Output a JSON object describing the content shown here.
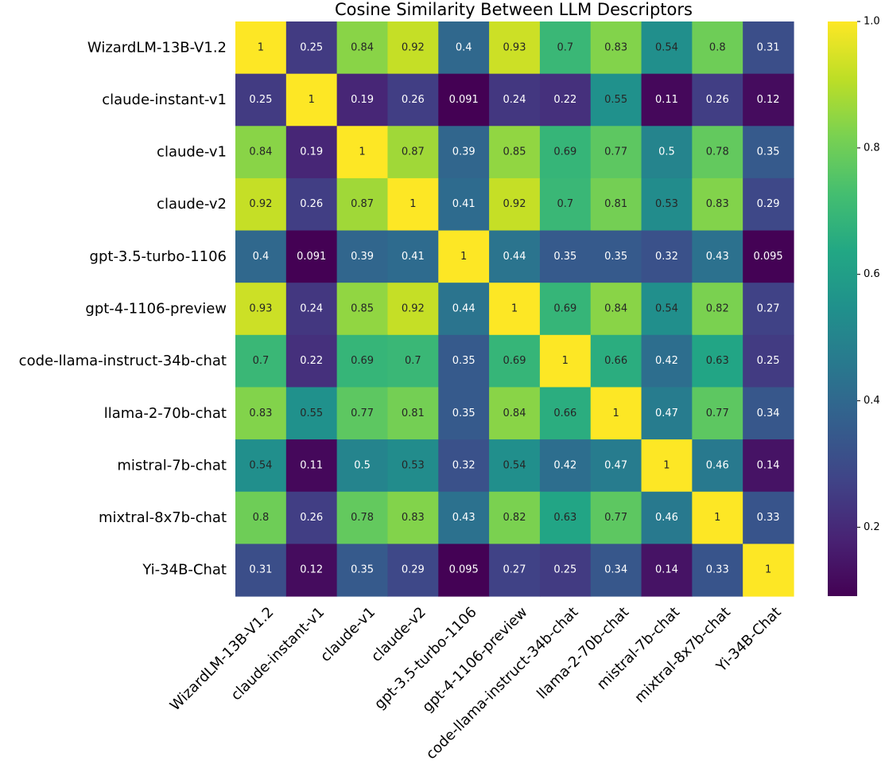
{
  "chart_data": {
    "type": "heatmap",
    "title": "Cosine Similarity Between LLM Descriptors",
    "xlabel": "",
    "ylabel": "",
    "colormap": "viridis",
    "vmin": 0.091,
    "vmax": 1.0,
    "annotate": true,
    "labels": [
      "WizardLM-13B-V1.2",
      "claude-instant-v1",
      "claude-v1",
      "claude-v2",
      "gpt-3.5-turbo-1106",
      "gpt-4-1106-preview",
      "code-llama-instruct-34b-chat",
      "llama-2-70b-chat",
      "mistral-7b-chat",
      "mixtral-8x7b-chat",
      "Yi-34B-Chat"
    ],
    "matrix": [
      [
        1,
        0.25,
        0.84,
        0.92,
        0.4,
        0.93,
        0.7,
        0.83,
        0.54,
        0.8,
        0.31
      ],
      [
        0.25,
        1,
        0.19,
        0.26,
        0.091,
        0.24,
        0.22,
        0.55,
        0.11,
        0.26,
        0.12
      ],
      [
        0.84,
        0.19,
        1,
        0.87,
        0.39,
        0.85,
        0.69,
        0.77,
        0.5,
        0.78,
        0.35
      ],
      [
        0.92,
        0.26,
        0.87,
        1,
        0.41,
        0.92,
        0.7,
        0.81,
        0.53,
        0.83,
        0.29
      ],
      [
        0.4,
        0.091,
        0.39,
        0.41,
        1,
        0.44,
        0.35,
        0.35,
        0.32,
        0.43,
        0.095
      ],
      [
        0.93,
        0.24,
        0.85,
        0.92,
        0.44,
        1,
        0.69,
        0.84,
        0.54,
        0.82,
        0.27
      ],
      [
        0.7,
        0.22,
        0.69,
        0.7,
        0.35,
        0.69,
        1,
        0.66,
        0.42,
        0.63,
        0.25
      ],
      [
        0.83,
        0.55,
        0.77,
        0.81,
        0.35,
        0.84,
        0.66,
        1,
        0.47,
        0.77,
        0.34
      ],
      [
        0.54,
        0.11,
        0.5,
        0.53,
        0.32,
        0.54,
        0.42,
        0.47,
        1,
        0.46,
        0.14
      ],
      [
        0.8,
        0.26,
        0.78,
        0.83,
        0.43,
        0.82,
        0.63,
        0.77,
        0.46,
        1,
        0.33
      ],
      [
        0.31,
        0.12,
        0.35,
        0.29,
        0.095,
        0.27,
        0.25,
        0.34,
        0.14,
        0.33,
        1
      ]
    ],
    "colorbar": {
      "ticks": [
        0.2,
        0.4,
        0.6,
        0.8,
        1.0
      ],
      "tick_labels": [
        "0.2",
        "0.4",
        "0.6",
        "0.8",
        "1.0"
      ]
    }
  }
}
